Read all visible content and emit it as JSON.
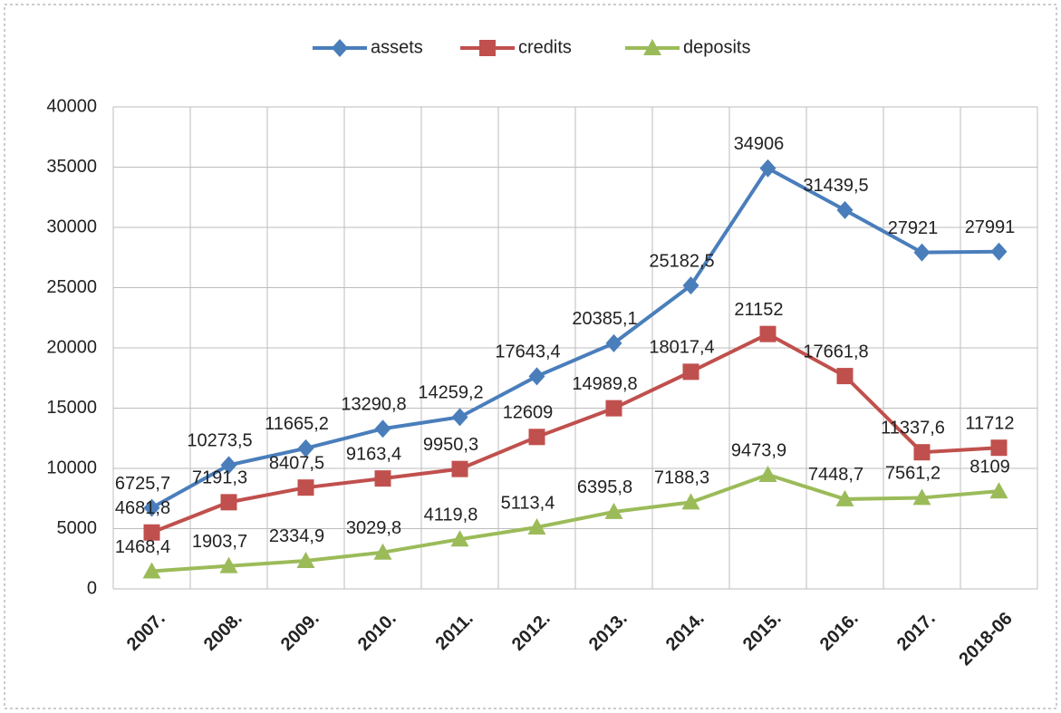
{
  "chart_data": {
    "type": "line",
    "categories": [
      "2007.",
      "2008.",
      "2009.",
      "2010.",
      "2011.",
      "2012.",
      "2013.",
      "2014.",
      "2015.",
      "2016.",
      "2017.",
      "2018-06"
    ],
    "series": [
      {
        "name": "assets",
        "color": "#4a7ebb",
        "marker": "diamond",
        "values": [
          6725.7,
          10273.5,
          11665.2,
          13290.8,
          14259.2,
          17643.4,
          20385.1,
          25182.5,
          34906,
          31439.5,
          27921,
          27991
        ],
        "value_labels": [
          "6725,7",
          "10273,5",
          "11665,2",
          "13290,8",
          "14259,2",
          "17643,4",
          "20385,1",
          "25182,5",
          "34906",
          "31439,5",
          "27921",
          "27991"
        ]
      },
      {
        "name": "credits",
        "color": "#c0504d",
        "marker": "square",
        "values": [
          4681.8,
          7191.3,
          8407.5,
          9163.4,
          9950.3,
          12609,
          14989.8,
          18017.4,
          21152,
          17661.8,
          11337.6,
          11712
        ],
        "value_labels": [
          "4681,8",
          "7191,3",
          "8407,5",
          "9163,4",
          "9950,3",
          "12609",
          "14989,8",
          "18017,4",
          "21152",
          "17661,8",
          "11337,6",
          "11712"
        ]
      },
      {
        "name": "deposits",
        "color": "#9bbb59",
        "marker": "triangle",
        "values": [
          1468.4,
          1903.7,
          2334.9,
          3029.8,
          4119.8,
          5113.4,
          6395.8,
          7188.3,
          9473.9,
          7448.7,
          7561.2,
          8109
        ],
        "value_labels": [
          "1468,4",
          "1903,7",
          "2334,9",
          "3029,8",
          "4119,8",
          "5113,4",
          "6395,8",
          "7188,3",
          "9473,9",
          "7448,7",
          "7561,2",
          "8109"
        ]
      }
    ],
    "ylim": [
      0,
      40000
    ],
    "yticks": [
      0,
      5000,
      10000,
      15000,
      20000,
      25000,
      30000,
      35000,
      40000
    ],
    "grid": true,
    "legend": "top"
  }
}
